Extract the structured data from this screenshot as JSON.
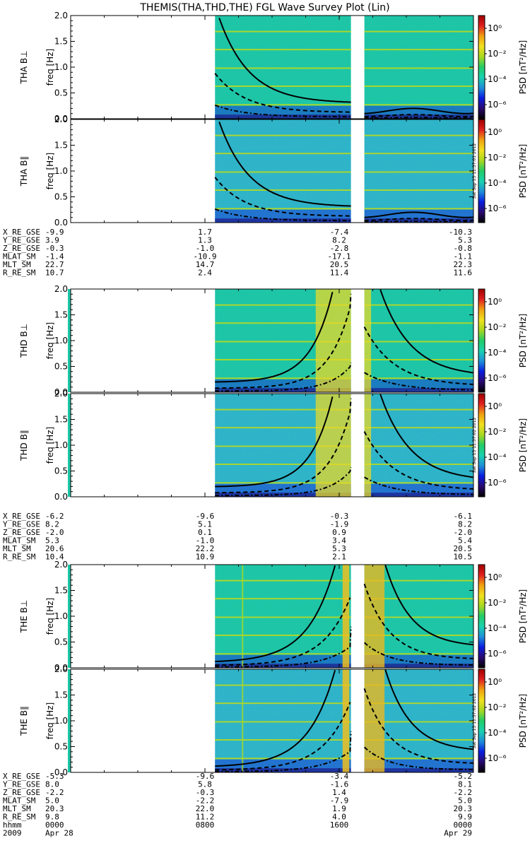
{
  "title": "THEMIS(THA,THD,THE) FGL Wave Survey Plot (Lin)",
  "chart_data": {
    "type": "heatmap",
    "x_axis": {
      "tick_values_hhmm": [
        "0000",
        "0800",
        "1600",
        "0000"
      ],
      "date_labels": [
        "2009",
        "Apr 28",
        "Apr 29"
      ],
      "row_label": "hhmm",
      "range_hours": [
        0,
        24
      ]
    },
    "y_axis": {
      "label": "freq [Hz]",
      "range": [
        0,
        2.0
      ],
      "ticks": [
        "0.0",
        "0.5",
        "1.0",
        "1.5",
        "2.0"
      ]
    },
    "colorbar": {
      "label": "PSD [nT²/Hz]",
      "scale": "log",
      "ticks": [
        "10⁰",
        "10⁻²",
        "10⁻⁴",
        "10⁻⁶"
      ],
      "colors": [
        "#000000",
        "#2a0a6e",
        "#0a1de0",
        "#1f8fd8",
        "#19d1b0",
        "#22cc66",
        "#a8d820",
        "#f0e020",
        "#f0a010",
        "#e02020",
        "#a00000"
      ]
    },
    "data_gaps_hours": [
      [
        0,
        8.6
      ],
      [
        16.7,
        17.5
      ]
    ],
    "panels": [
      {
        "name": "THA B⊥",
        "probe": "THA",
        "component": "perp",
        "stamp": ""
      },
      {
        "name": "THA B∥",
        "probe": "THA",
        "component": "par",
        "stamp": "Sat Sep 15 11:57:01 2012"
      },
      {
        "name": "THD B⊥",
        "probe": "THD",
        "component": "perp",
        "stamp": ""
      },
      {
        "name": "THD B∥",
        "probe": "THD",
        "component": "par",
        "stamp": "Sat Sep 15 11:57:02 2012"
      },
      {
        "name": "THE B⊥",
        "probe": "THE",
        "component": "perp",
        "stamp": ""
      },
      {
        "name": "THE B∥",
        "probe": "THE",
        "component": "par",
        "stamp": "Sat Sep 15 11:57:02 2012"
      }
    ],
    "ephemeris": [
      {
        "probe": "THA",
        "rows": [
          {
            "label": "X_RE_GSE",
            "values": [
              "-9.9",
              "1.7",
              "-7.4",
              "-10.3"
            ]
          },
          {
            "label": "Y_RE_GSE",
            "values": [
              "3.9",
              "1.3",
              "8.2",
              "5.3"
            ]
          },
          {
            "label": "Z_RE_GSE",
            "values": [
              "-0.3",
              "-1.0",
              "-2.8",
              "-0.8"
            ]
          },
          {
            "label": "MLAT_SM",
            "values": [
              "-1.4",
              "-10.9",
              "-17.1",
              "-1.1"
            ]
          },
          {
            "label": "MLT_SM",
            "values": [
              "22.7",
              "14.7",
              "20.5",
              "22.3"
            ]
          },
          {
            "label": "R_RE_SM",
            "values": [
              "10.7",
              "2.4",
              "11.4",
              "11.6"
            ]
          }
        ]
      },
      {
        "probe": "THD",
        "rows": [
          {
            "label": "X_RE_GSE",
            "values": [
              "-6.2",
              "-9.6",
              "-0.3",
              "-6.1"
            ]
          },
          {
            "label": "Y_RE_GSE",
            "values": [
              "8.2",
              "5.1",
              "-1.9",
              "8.2"
            ]
          },
          {
            "label": "Z_RE_GSE",
            "values": [
              "-2.0",
              "0.1",
              "0.9",
              "-2.0"
            ]
          },
          {
            "label": "MLAT_SM",
            "values": [
              "5.3",
              "-1.0",
              "3.4",
              "5.4"
            ]
          },
          {
            "label": "MLT_SM",
            "values": [
              "20.6",
              "22.2",
              "5.3",
              "20.5"
            ]
          },
          {
            "label": "R_RE_SM",
            "values": [
              "10.4",
              "10.9",
              "2.1",
              "10.5"
            ]
          }
        ]
      },
      {
        "probe": "THE",
        "rows": [
          {
            "label": "X_RE_GSE",
            "values": [
              "-5.3",
              "-9.6",
              "-3.4",
              "-5.2"
            ]
          },
          {
            "label": "Y_RE_GSE",
            "values": [
              "8.0",
              "5.8",
              "-1.6",
              "8.1"
            ]
          },
          {
            "label": "Z_RE_GSE",
            "values": [
              "-2.2",
              "-0.3",
              "1.4",
              "-2.2"
            ]
          },
          {
            "label": "MLAT_SM",
            "values": [
              "5.0",
              "-2.2",
              "-7.9",
              "5.0"
            ]
          },
          {
            "label": "MLT_SM",
            "values": [
              "20.3",
              "22.0",
              "1.9",
              "20.3"
            ]
          },
          {
            "label": "R_RE_SM",
            "values": [
              "9.8",
              "11.2",
              "4.0",
              "9.9"
            ]
          }
        ]
      }
    ]
  }
}
